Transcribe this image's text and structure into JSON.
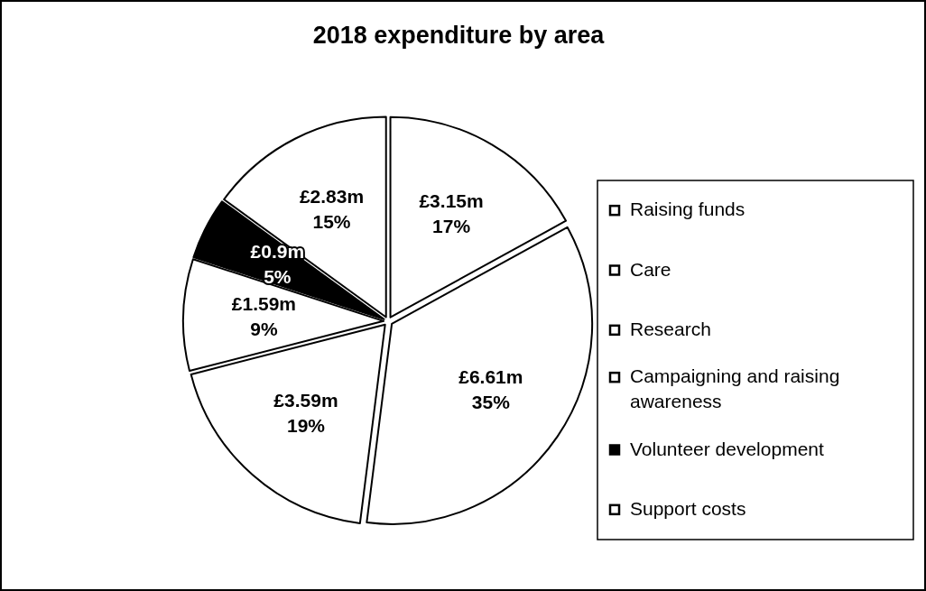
{
  "chart_data": {
    "type": "pie",
    "title": "2018 expenditure by area",
    "categories": [
      "Raising funds",
      "Care",
      "Research",
      "Campaigning and raising awareness",
      "Volunteer development",
      "Support costs"
    ],
    "values": [
      17,
      35,
      19,
      9,
      5,
      15
    ],
    "value_labels": [
      "£3.15m\n17%",
      "£6.61m\n35%",
      "£3.59m\n19%",
      "£1.59m\n9%",
      "£0.9m\n5%",
      "£2.83m\n15%"
    ],
    "colors": [
      "#ffffff",
      "#ffffff",
      "#ffffff",
      "#ffffff",
      "#000000",
      "#ffffff"
    ],
    "legend": "right"
  }
}
